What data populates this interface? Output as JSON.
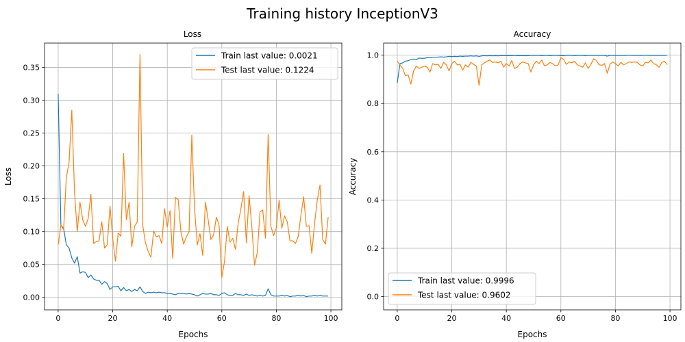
{
  "suptitle": "Training history InceptionV3",
  "colors": {
    "train": "#1f77b4",
    "test": "#ff7f0e",
    "grid": "#b0b0b0",
    "axis": "#000000"
  },
  "chart_data": [
    {
      "type": "line",
      "title": "Loss",
      "xlabel": "Epochs",
      "ylabel": "Loss",
      "xlim": [
        -5,
        104
      ],
      "ylim": [
        -0.019,
        0.387
      ],
      "xticks": [
        0,
        20,
        40,
        60,
        80,
        100
      ],
      "yticks": [
        0.0,
        0.05,
        0.1,
        0.15,
        0.2,
        0.25,
        0.3,
        0.35
      ],
      "ytick_labels": [
        "0.00",
        "0.05",
        "0.10",
        "0.15",
        "0.20",
        "0.25",
        "0.30",
        "0.35"
      ],
      "grid": true,
      "legend_position": "upper right",
      "series": [
        {
          "name": "Train last value: 0.0021",
          "color": "#1f77b4",
          "x": [
            0,
            1,
            2,
            3,
            4,
            5,
            6,
            7,
            8,
            9,
            10,
            11,
            12,
            13,
            14,
            15,
            16,
            17,
            18,
            19,
            20,
            21,
            22,
            23,
            24,
            25,
            26,
            27,
            28,
            29,
            30,
            31,
            32,
            33,
            34,
            35,
            36,
            37,
            38,
            39,
            40,
            41,
            42,
            43,
            44,
            45,
            46,
            47,
            48,
            49,
            50,
            51,
            52,
            53,
            54,
            55,
            56,
            57,
            58,
            59,
            60,
            61,
            62,
            63,
            64,
            65,
            66,
            67,
            68,
            69,
            70,
            71,
            72,
            73,
            74,
            75,
            76,
            77,
            78,
            79,
            80,
            81,
            82,
            83,
            84,
            85,
            86,
            87,
            88,
            89,
            90,
            91,
            92,
            93,
            94,
            95,
            96,
            97,
            98,
            99
          ],
          "values": [
            0.31,
            0.11,
            0.105,
            0.08,
            0.075,
            0.06,
            0.052,
            0.062,
            0.037,
            0.039,
            0.038,
            0.03,
            0.034,
            0.028,
            0.026,
            0.026,
            0.02,
            0.024,
            0.021,
            0.012,
            0.016,
            0.016,
            0.017,
            0.01,
            0.015,
            0.01,
            0.012,
            0.009,
            0.012,
            0.01,
            0.016,
            0.009,
            0.006,
            0.008,
            0.007,
            0.008,
            0.007,
            0.008,
            0.007,
            0.007,
            0.006,
            0.006,
            0.005,
            0.004,
            0.006,
            0.006,
            0.006,
            0.005,
            0.006,
            0.005,
            0.004,
            0.002,
            0.004,
            0.006,
            0.005,
            0.005,
            0.006,
            0.004,
            0.004,
            0.003,
            0.006,
            0.007,
            0.004,
            0.003,
            0.003,
            0.006,
            0.004,
            0.004,
            0.003,
            0.005,
            0.003,
            0.004,
            0.003,
            0.002,
            0.003,
            0.002,
            0.003,
            0.013,
            0.004,
            0.002,
            0.002,
            0.002,
            0.003,
            0.002,
            0.003,
            0.001,
            0.002,
            0.002,
            0.003,
            0.002,
            0.003,
            0.001,
            0.002,
            0.002,
            0.003,
            0.002,
            0.003,
            0.002,
            0.002,
            0.002
          ]
        },
        {
          "name": "Test last value: 0.1224",
          "color": "#ff7f0e",
          "x": [
            0,
            1,
            2,
            3,
            4,
            5,
            6,
            7,
            8,
            9,
            10,
            11,
            12,
            13,
            14,
            15,
            16,
            17,
            18,
            19,
            20,
            21,
            22,
            23,
            24,
            25,
            26,
            27,
            28,
            29,
            30,
            31,
            32,
            33,
            34,
            35,
            36,
            37,
            38,
            39,
            40,
            41,
            42,
            43,
            44,
            45,
            46,
            47,
            48,
            49,
            50,
            51,
            52,
            53,
            54,
            55,
            56,
            57,
            58,
            59,
            60,
            61,
            62,
            63,
            64,
            65,
            66,
            67,
            68,
            69,
            70,
            71,
            72,
            73,
            74,
            75,
            76,
            77,
            78,
            79,
            80,
            81,
            82,
            83,
            84,
            85,
            86,
            87,
            88,
            89,
            90,
            91,
            92,
            93,
            94,
            95,
            96,
            97,
            98,
            99
          ],
          "values": [
            0.08,
            0.11,
            0.103,
            0.183,
            0.205,
            0.285,
            0.16,
            0.1,
            0.145,
            0.118,
            0.108,
            0.12,
            0.157,
            0.082,
            0.085,
            0.086,
            0.115,
            0.075,
            0.08,
            0.139,
            0.09,
            0.055,
            0.098,
            0.093,
            0.219,
            0.118,
            0.145,
            0.077,
            0.108,
            0.115,
            0.37,
            0.11,
            0.083,
            0.07,
            0.061,
            0.101,
            0.092,
            0.094,
            0.082,
            0.135,
            0.107,
            0.132,
            0.059,
            0.152,
            0.149,
            0.1,
            0.081,
            0.092,
            0.1,
            0.247,
            0.135,
            0.08,
            0.097,
            0.064,
            0.145,
            0.118,
            0.088,
            0.095,
            0.122,
            0.11,
            0.03,
            0.055,
            0.108,
            0.084,
            0.09,
            0.073,
            0.113,
            0.135,
            0.161,
            0.083,
            0.155,
            0.108,
            0.049,
            0.068,
            0.13,
            0.133,
            0.09,
            0.248,
            0.108,
            0.094,
            0.106,
            0.148,
            0.105,
            0.124,
            0.115,
            0.086,
            0.086,
            0.082,
            0.092,
            0.125,
            0.153,
            0.108,
            0.109,
            0.067,
            0.112,
            0.148,
            0.171,
            0.088,
            0.081,
            0.1224
          ]
        }
      ]
    },
    {
      "type": "line",
      "title": "Accuracy",
      "xlabel": "Epochs",
      "ylabel": "Accuracy",
      "xlim": [
        -5,
        104
      ],
      "ylim": [
        -0.055,
        1.05
      ],
      "xticks": [
        0,
        20,
        40,
        60,
        80,
        100
      ],
      "yticks": [
        0.0,
        0.2,
        0.4,
        0.6,
        0.8,
        1.0
      ],
      "ytick_labels": [
        "0.0",
        "0.2",
        "0.4",
        "0.6",
        "0.8",
        "1.0"
      ],
      "grid": true,
      "legend_position": "lower left",
      "series": [
        {
          "name": "Train last value: 0.9996",
          "color": "#1f77b4",
          "x": [
            0,
            1,
            2,
            3,
            4,
            5,
            6,
            7,
            8,
            9,
            10,
            11,
            12,
            13,
            14,
            15,
            16,
            17,
            18,
            19,
            20,
            21,
            22,
            23,
            24,
            25,
            26,
            27,
            28,
            29,
            30,
            31,
            32,
            33,
            34,
            35,
            36,
            37,
            38,
            39,
            40,
            41,
            42,
            43,
            44,
            45,
            46,
            47,
            48,
            49,
            50,
            51,
            52,
            53,
            54,
            55,
            56,
            57,
            58,
            59,
            60,
            61,
            62,
            63,
            64,
            65,
            66,
            67,
            68,
            69,
            70,
            71,
            72,
            73,
            74,
            75,
            76,
            77,
            78,
            79,
            80,
            81,
            82,
            83,
            84,
            85,
            86,
            87,
            88,
            89,
            90,
            91,
            92,
            93,
            94,
            95,
            96,
            97,
            98,
            99
          ],
          "values": [
            0.885,
            0.965,
            0.968,
            0.975,
            0.977,
            0.982,
            0.984,
            0.981,
            0.988,
            0.987,
            0.987,
            0.99,
            0.989,
            0.991,
            0.991,
            0.992,
            0.993,
            0.992,
            0.993,
            0.995,
            0.994,
            0.995,
            0.994,
            0.996,
            0.995,
            0.996,
            0.996,
            0.997,
            0.996,
            0.997,
            0.995,
            0.997,
            0.998,
            0.997,
            0.998,
            0.997,
            0.998,
            0.997,
            0.998,
            0.998,
            0.998,
            0.998,
            0.998,
            0.999,
            0.998,
            0.998,
            0.998,
            0.998,
            0.998,
            0.999,
            0.999,
            0.999,
            0.999,
            0.998,
            0.999,
            0.999,
            0.998,
            0.999,
            0.999,
            0.999,
            0.998,
            0.998,
            0.999,
            0.999,
            0.999,
            0.998,
            0.999,
            0.999,
            0.999,
            0.998,
            0.999,
            0.999,
            0.999,
            0.999,
            0.999,
            0.999,
            0.999,
            0.996,
            0.999,
            0.999,
            0.999,
            0.999,
            0.999,
            0.999,
            0.999,
            1.0,
            0.999,
            0.999,
            0.999,
            0.999,
            0.999,
            1.0,
            0.999,
            0.999,
            0.999,
            0.999,
            0.999,
            0.999,
            0.999,
            0.9996
          ]
        },
        {
          "name": "Test last value: 0.9602",
          "color": "#ff7f0e",
          "x": [
            0,
            1,
            2,
            3,
            4,
            5,
            6,
            7,
            8,
            9,
            10,
            11,
            12,
            13,
            14,
            15,
            16,
            17,
            18,
            19,
            20,
            21,
            22,
            23,
            24,
            25,
            26,
            27,
            28,
            29,
            30,
            31,
            32,
            33,
            34,
            35,
            36,
            37,
            38,
            39,
            40,
            41,
            42,
            43,
            44,
            45,
            46,
            47,
            48,
            49,
            50,
            51,
            52,
            53,
            54,
            55,
            56,
            57,
            58,
            59,
            60,
            61,
            62,
            63,
            64,
            65,
            66,
            67,
            68,
            69,
            70,
            71,
            72,
            73,
            74,
            75,
            76,
            77,
            78,
            79,
            80,
            81,
            82,
            83,
            84,
            85,
            86,
            87,
            88,
            89,
            90,
            91,
            92,
            93,
            94,
            95,
            96,
            97,
            98,
            99
          ],
          "values": [
            0.975,
            0.96,
            0.945,
            0.915,
            0.918,
            0.88,
            0.935,
            0.955,
            0.945,
            0.95,
            0.955,
            0.95,
            0.93,
            0.965,
            0.96,
            0.962,
            0.945,
            0.97,
            0.96,
            0.935,
            0.965,
            0.975,
            0.96,
            0.962,
            0.938,
            0.96,
            0.95,
            0.97,
            0.962,
            0.955,
            0.875,
            0.96,
            0.968,
            0.975,
            0.98,
            0.97,
            0.972,
            0.968,
            0.975,
            0.95,
            0.965,
            0.955,
            0.978,
            0.945,
            0.95,
            0.965,
            0.972,
            0.968,
            0.965,
            0.93,
            0.96,
            0.975,
            0.965,
            0.98,
            0.955,
            0.96,
            0.97,
            0.965,
            0.955,
            0.96,
            0.99,
            0.982,
            0.962,
            0.972,
            0.968,
            0.975,
            0.96,
            0.955,
            0.95,
            0.968,
            0.945,
            0.962,
            0.985,
            0.978,
            0.96,
            0.958,
            0.965,
            0.925,
            0.962,
            0.972,
            0.965,
            0.955,
            0.97,
            0.96,
            0.965,
            0.972,
            0.97,
            0.972,
            0.97,
            0.96,
            0.955,
            0.97,
            0.968,
            0.98,
            0.965,
            0.96,
            0.95,
            0.97,
            0.975,
            0.9602
          ]
        }
      ]
    }
  ]
}
